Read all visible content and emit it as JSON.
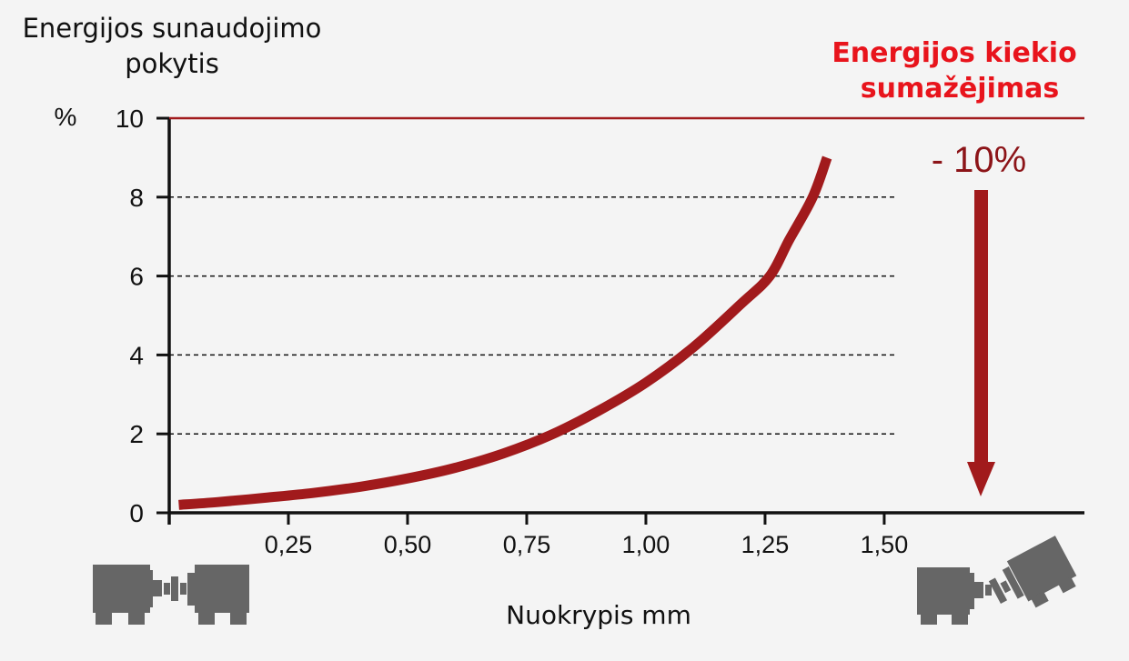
{
  "chart_data": {
    "type": "line",
    "ylabel_lines": [
      "Energijos sunaudojimo",
      "pokytis"
    ],
    "y_unit": "%",
    "xlabel": "Nuokrypis mm",
    "x_ticks": [
      {
        "value": 0.25,
        "label": "0,25"
      },
      {
        "value": 0.5,
        "label": "0,50"
      },
      {
        "value": 0.75,
        "label": "0,75"
      },
      {
        "value": 1.0,
        "label": "1,00"
      },
      {
        "value": 1.25,
        "label": "1,25"
      },
      {
        "value": 1.5,
        "label": "1,50"
      }
    ],
    "y_ticks": [
      {
        "value": 0,
        "label": "0"
      },
      {
        "value": 2,
        "label": "2"
      },
      {
        "value": 4,
        "label": "4"
      },
      {
        "value": 6,
        "label": "6"
      },
      {
        "value": 8,
        "label": "8"
      },
      {
        "value": 10,
        "label": "10"
      }
    ],
    "xlim": [
      0,
      1.92
    ],
    "ylim": [
      0,
      10
    ],
    "grid": "dashed horizontal at 2, 4, 6, 8",
    "reference_line": {
      "y": 10
    },
    "series": [
      {
        "color": "#a11a1c",
        "x": [
          0.02,
          0.1,
          0.2,
          0.3,
          0.4,
          0.5,
          0.6,
          0.7,
          0.8,
          0.9,
          1.0,
          1.1,
          1.2,
          1.26,
          1.3,
          1.35,
          1.38
        ],
        "y": [
          0.2,
          0.27,
          0.38,
          0.5,
          0.66,
          0.87,
          1.14,
          1.5,
          1.97,
          2.58,
          3.3,
          4.2,
          5.3,
          6.0,
          6.9,
          8.0,
          9.0
        ]
      }
    ],
    "annotation": {
      "title_lines": [
        "Energijos kiekio",
        "sumažėjimas"
      ],
      "value_label": "- 10%",
      "title_color": "#e8141c",
      "arrow_color": "#a11a1c",
      "arrow_direction": "down"
    }
  },
  "icons": {
    "left": "aligned-motor-coupling-icon",
    "right": "misaligned-motor-coupling-icon",
    "color": "#666666"
  }
}
